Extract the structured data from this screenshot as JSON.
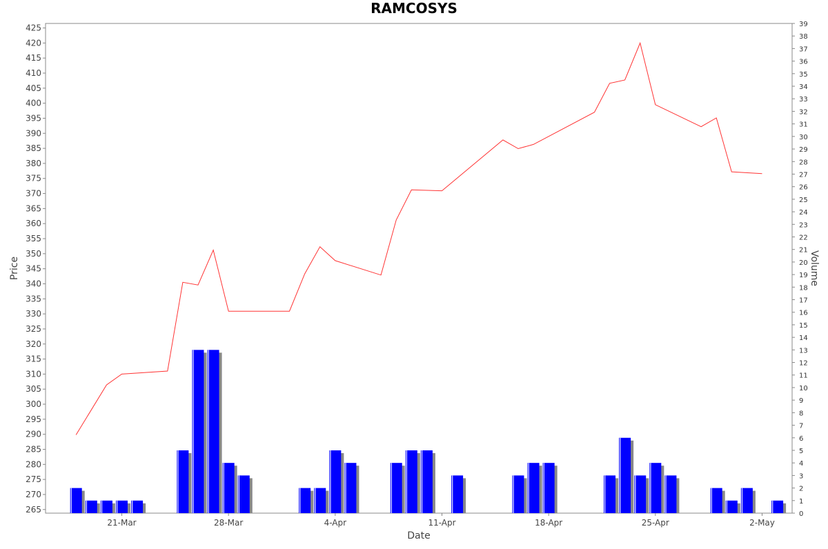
{
  "chart_data": {
    "type": "line+bar",
    "title": "RAMCOSYS",
    "xlabel": "Date",
    "ylabel_left": "Price",
    "ylabel_right": "Volume",
    "ylim_left": [
      263.8,
      426.5
    ],
    "ylim_right": [
      0,
      39
    ],
    "grid": false,
    "x_ticks": [
      "21-Mar",
      "28-Mar",
      "4-Apr",
      "11-Apr",
      "18-Apr",
      "25-Apr",
      "2-May"
    ],
    "series": [
      {
        "kind": "line",
        "color": "#ff3333",
        "points": [
          {
            "day": -3,
            "y": 289.8
          },
          {
            "day": -1,
            "y": 306.4
          },
          {
            "day": 0,
            "y": 310.0
          },
          {
            "day": 3,
            "y": 311.0
          },
          {
            "day": 4,
            "y": 340.5
          },
          {
            "day": 5,
            "y": 339.6
          },
          {
            "day": 6,
            "y": 351.2
          },
          {
            "day": 7,
            "y": 330.9
          },
          {
            "day": 11,
            "y": 330.9
          },
          {
            "day": 12,
            "y": 343.3
          },
          {
            "day": 13,
            "y": 352.3
          },
          {
            "day": 14,
            "y": 347.7
          },
          {
            "day": 17,
            "y": 342.9
          },
          {
            "day": 18,
            "y": 361.2
          },
          {
            "day": 19,
            "y": 371.2
          },
          {
            "day": 21,
            "y": 370.9
          },
          {
            "day": 25,
            "y": 387.8
          },
          {
            "day": 26,
            "y": 384.9
          },
          {
            "day": 27,
            "y": 386.3
          },
          {
            "day": 31,
            "y": 397.0
          },
          {
            "day": 32,
            "y": 406.6
          },
          {
            "day": 33,
            "y": 407.7
          },
          {
            "day": 34,
            "y": 420.0
          },
          {
            "day": 35,
            "y": 399.5
          },
          {
            "day": 38,
            "y": 392.2
          },
          {
            "day": 39,
            "y": 395.1
          },
          {
            "day": 40,
            "y": 377.2
          },
          {
            "day": 42,
            "y": 376.6
          }
        ]
      },
      {
        "kind": "bar",
        "color": "#0000ff",
        "points": [
          {
            "day": -3,
            "v": 2
          },
          {
            "day": -2,
            "v": 1
          },
          {
            "day": -1,
            "v": 1
          },
          {
            "day": 0,
            "v": 1
          },
          {
            "day": 1,
            "v": 1
          },
          {
            "day": 4,
            "v": 5
          },
          {
            "day": 5,
            "v": 13
          },
          {
            "day": 6,
            "v": 13
          },
          {
            "day": 7,
            "v": 4
          },
          {
            "day": 8,
            "v": 3
          },
          {
            "day": 12,
            "v": 2
          },
          {
            "day": 13,
            "v": 2
          },
          {
            "day": 14,
            "v": 5
          },
          {
            "day": 15,
            "v": 4
          },
          {
            "day": 18,
            "v": 4
          },
          {
            "day": 19,
            "v": 5
          },
          {
            "day": 20,
            "v": 5
          },
          {
            "day": 22,
            "v": 3
          },
          {
            "day": 26,
            "v": 3
          },
          {
            "day": 27,
            "v": 4
          },
          {
            "day": 28,
            "v": 4
          },
          {
            "day": 32,
            "v": 3
          },
          {
            "day": 33,
            "v": 6
          },
          {
            "day": 34,
            "v": 3
          },
          {
            "day": 35,
            "v": 4
          },
          {
            "day": 36,
            "v": 3
          },
          {
            "day": 39,
            "v": 2
          },
          {
            "day": 40,
            "v": 1
          },
          {
            "day": 41,
            "v": 2
          },
          {
            "day": 43,
            "v": 1
          }
        ]
      }
    ]
  }
}
